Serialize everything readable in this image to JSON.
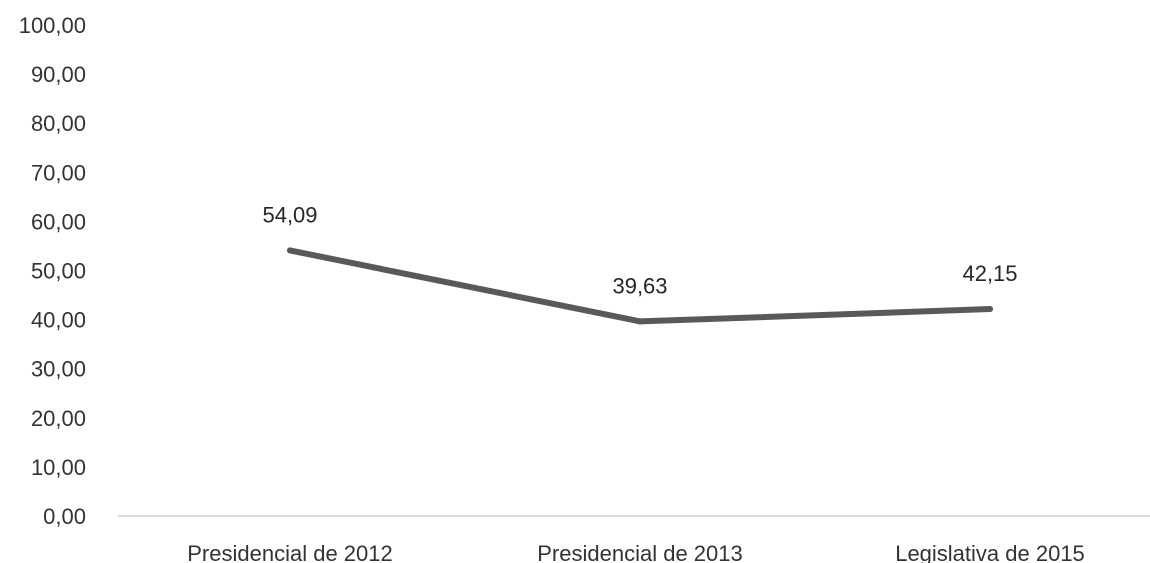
{
  "chart_data": {
    "type": "line",
    "categories": [
      "Presidencial de 2012",
      "Presidencial de 2013",
      "Legislativa de 2015"
    ],
    "series": [
      {
        "values": [
          54.09,
          39.63,
          42.15
        ],
        "labels": [
          "54,09",
          "39,63",
          "42,15"
        ],
        "color": "#595959"
      }
    ],
    "y_tick_labels": [
      "0,00",
      "10,00",
      "20,00",
      "30,00",
      "40,00",
      "50,00",
      "60,00",
      "70,00",
      "80,00",
      "90,00",
      "100,00"
    ],
    "ylim": [
      0,
      100
    ],
    "y_step": 10,
    "title": "",
    "xlabel": "",
    "ylabel": "",
    "grid": false,
    "legend": "none",
    "axis_color": "#d9d9d9",
    "label_color": "#333333"
  }
}
